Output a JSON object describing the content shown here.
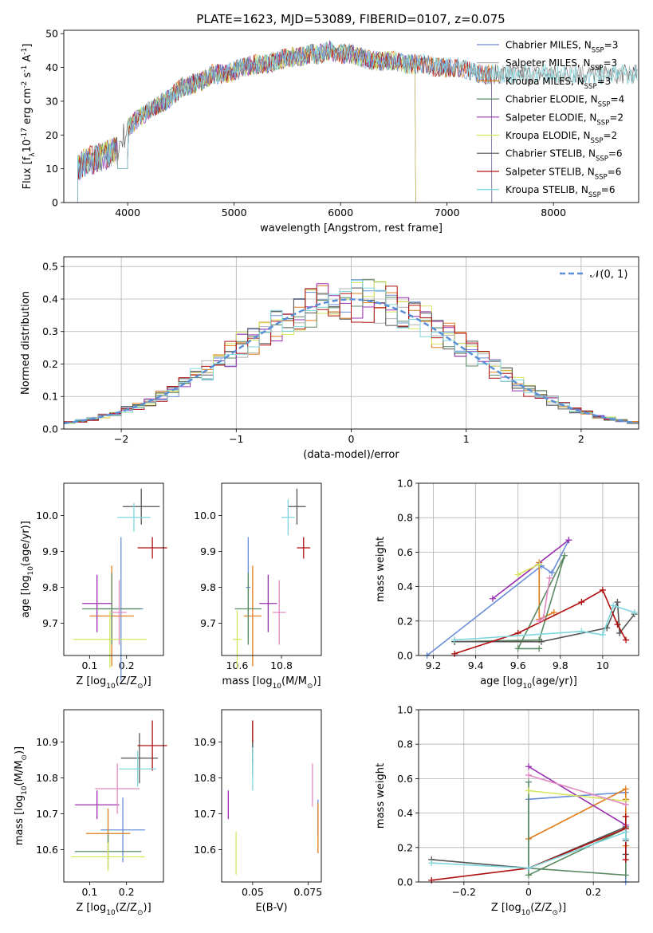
{
  "figure_title": "PLATE=1623, MJD=53089, FIBERID=0107, z=0.075",
  "colors": {
    "Chabrier MILES": "#6a8fd8",
    "Salpeter MILES": "#b0b0b0",
    "Kroupa MILES": "#e07b1a",
    "Chabrier ELODIE": "#5a8a62",
    "Salpeter ELODIE": "#9b30b0",
    "Kroupa ELODIE": "#d6e65c",
    "Chabrier STELIB": "#555555",
    "Salpeter STELIB": "#b01010",
    "Kroupa STELIB": "#7fd6dc",
    "pink": "#e08ac0",
    "normal": "#5b8fd8"
  },
  "chart_data": [
    {
      "type": "line",
      "title": "",
      "xlabel": "wavelength [Angstrom, rest frame]",
      "ylabel": "Flux [f$_\\lambda$10$^{-17}$ erg cm$^{-2}$ s$^{-1}$ A$^{-1}$]",
      "xlim": [
        3400,
        8800
      ],
      "ylim": [
        0,
        51
      ],
      "xticks": [
        4000,
        5000,
        6000,
        7000,
        8000
      ],
      "yticks": [
        0,
        10,
        20,
        30,
        40,
        50
      ],
      "legend_position": "right",
      "legend": [
        {
          "label": "Chabrier MILES, N",
          "sub": "SSP",
          "tail": "=3",
          "color": "#6a8fd8"
        },
        {
          "label": "Salpeter MILES, N",
          "sub": "SSP",
          "tail": "=3",
          "color": "#b0b0b0"
        },
        {
          "label": "Kroupa MILES, N",
          "sub": "SSP",
          "tail": "=3",
          "color": "#e07b1a"
        },
        {
          "label": "Chabrier ELODIE, N",
          "sub": "SSP",
          "tail": "=4",
          "color": "#5a8a62"
        },
        {
          "label": "Salpeter ELODIE, N",
          "sub": "SSP",
          "tail": "=2",
          "color": "#9b30b0"
        },
        {
          "label": "Kroupa ELODIE, N",
          "sub": "SSP",
          "tail": "=2",
          "color": "#d6e65c"
        },
        {
          "label": "Chabrier STELIB, N",
          "sub": "SSP",
          "tail": "=6",
          "color": "#555555"
        },
        {
          "label": "Salpeter STELIB, N",
          "sub": "SSP",
          "tail": "=6",
          "color": "#b01010"
        },
        {
          "label": "Kroupa STELIB, N",
          "sub": "SSP",
          "tail": "=6",
          "color": "#7fd6dc"
        }
      ],
      "continuum": {
        "x": [
          3530,
          3600,
          3700,
          3800,
          3900,
          4000,
          4100,
          4200,
          4300,
          4400,
          4500,
          4600,
          4700,
          4800,
          4900,
          5000,
          5100,
          5200,
          5300,
          5400,
          5500,
          5600,
          5700,
          5800,
          5900,
          6000,
          6100,
          6200,
          6300,
          6400,
          6500,
          6600,
          6700,
          6800,
          6900,
          7000,
          7100,
          7200,
          7300,
          7400,
          7500,
          7600,
          7700,
          7800,
          7900,
          8000,
          8100,
          8200,
          8300,
          8400,
          8500,
          8600,
          8700,
          8800
        ],
        "y": [
          10,
          12,
          13,
          14,
          16,
          22,
          25,
          27,
          29,
          31,
          34,
          35,
          36,
          38,
          38,
          39,
          40,
          41,
          41,
          42,
          43,
          43,
          44,
          44,
          45,
          44,
          44,
          43,
          42,
          42,
          42,
          41,
          41,
          41,
          40,
          40,
          40,
          39,
          38,
          38,
          38,
          38,
          38,
          38,
          38,
          38,
          38,
          38,
          38,
          38,
          38,
          38,
          38,
          38
        ]
      }
    },
    {
      "type": "line",
      "xlabel": "(data-model)/error",
      "ylabel": "Normed distribution",
      "xlim": [
        -2.5,
        2.5
      ],
      "ylim": [
        0,
        0.53
      ],
      "xticks": [
        -2,
        -1,
        0,
        1,
        2
      ],
      "yticks": [
        0.0,
        0.1,
        0.2,
        0.3,
        0.4,
        0.5
      ],
      "grid": true,
      "legend_position": "top-right",
      "legend_label": "𝒩(0, 1)"
    },
    {
      "type": "scatter",
      "xlabel": "Z [log$_{10}$(Z/Z$_\\odot$)]",
      "ylabel": "age  [log$_{10}$(age/yr)]",
      "xlim": [
        0.03,
        0.3
      ],
      "ylim": [
        9.61,
        10.09
      ],
      "xticks": [
        0.1,
        0.2
      ],
      "yticks": [
        9.7,
        9.8,
        9.9,
        10.0
      ],
      "points": [
        {
          "c": "#6a8fd8",
          "x": 0.185,
          "y": 9.74,
          "xe": 0.06,
          "ye": 0.2
        },
        {
          "c": "#e07b1a",
          "x": 0.16,
          "y": 9.72,
          "xe": 0.06,
          "ye": 0.14
        },
        {
          "c": "#5a8a62",
          "x": 0.16,
          "y": 9.74,
          "xe": 0.08,
          "ye": 0.1
        },
        {
          "c": "#9b30b0",
          "x": 0.12,
          "y": 9.755,
          "xe": 0.04,
          "ye": 0.08
        },
        {
          "c": "#d6e65c",
          "x": 0.155,
          "y": 9.655,
          "xe": 0.1,
          "ye": 0.08
        },
        {
          "c": "#555555",
          "x": 0.24,
          "y": 10.025,
          "xe": 0.05,
          "ye": 0.05
        },
        {
          "c": "#b01010",
          "x": 0.27,
          "y": 9.91,
          "xe": 0.04,
          "ye": 0.03
        },
        {
          "c": "#7fd6dc",
          "x": 0.22,
          "y": 9.995,
          "xe": 0.045,
          "ye": 0.04
        },
        {
          "c": "#e08ac0",
          "x": 0.18,
          "y": 9.73,
          "xe": 0.02,
          "ye": 0.09
        }
      ]
    },
    {
      "type": "scatter",
      "xlabel": "mass [log$_{10}$(M/M$_\\odot$)]",
      "ylabel": "",
      "xlim": [
        10.53,
        10.98
      ],
      "ylim": [
        9.61,
        10.09
      ],
      "xticks": [
        10.6,
        10.8
      ],
      "yticks": [
        9.7,
        9.8,
        9.9,
        10.0
      ],
      "points": [
        {
          "c": "#6a8fd8",
          "x": 10.65,
          "y": 9.8,
          "xe": 0.01,
          "ye": 0.14
        },
        {
          "c": "#e07b1a",
          "x": 10.67,
          "y": 9.72,
          "xe": 0.04,
          "ye": 0.14
        },
        {
          "c": "#5a8a62",
          "x": 10.65,
          "y": 9.74,
          "xe": 0.06,
          "ye": 0.1
        },
        {
          "c": "#9b30b0",
          "x": 10.74,
          "y": 9.755,
          "xe": 0.04,
          "ye": 0.08
        },
        {
          "c": "#d6e65c",
          "x": 10.6,
          "y": 9.655,
          "xe": 0.02,
          "ye": 0.08
        },
        {
          "c": "#555555",
          "x": 10.87,
          "y": 10.025,
          "xe": 0.04,
          "ye": 0.05
        },
        {
          "c": "#b01010",
          "x": 10.9,
          "y": 9.91,
          "xe": 0.03,
          "ye": 0.03
        },
        {
          "c": "#7fd6dc",
          "x": 10.83,
          "y": 9.995,
          "xe": 0.03,
          "ye": 0.05
        },
        {
          "c": "#e08ac0",
          "x": 10.79,
          "y": 9.73,
          "xe": 0.03,
          "ye": 0.09
        }
      ]
    },
    {
      "type": "line",
      "xlabel": "age  [log$_{10}$(age/yr)]",
      "ylabel": "mass weight",
      "xlim": [
        9.13,
        10.17
      ],
      "ylim": [
        0.0,
        1.0
      ],
      "xticks": [
        9.2,
        9.4,
        9.6,
        9.8,
        10.0
      ],
      "yticks": [
        0.0,
        0.2,
        0.4,
        0.6,
        0.8,
        1.0
      ],
      "grid": true,
      "series": [
        {
          "c": "#6a8fd8",
          "x": [
            9.17,
            9.71,
            9.76,
            9.84
          ],
          "y": [
            0.0,
            0.52,
            0.48,
            0.67
          ]
        },
        {
          "c": "#e07b1a",
          "x": [
            9.7,
            9.7,
            9.77
          ],
          "y": [
            0.54,
            0.21,
            0.25
          ]
        },
        {
          "c": "#5a8a62",
          "x": [
            9.3,
            9.7,
            9.82,
            9.6,
            9.7
          ],
          "y": [
            0.08,
            0.09,
            0.58,
            0.04,
            0.04
          ]
        },
        {
          "c": "#9b30b0",
          "x": [
            9.48,
            9.84
          ],
          "y": [
            0.33,
            0.67
          ]
        },
        {
          "c": "#d6e65c",
          "x": [
            9.6,
            9.7
          ],
          "y": [
            0.47,
            0.53
          ]
        },
        {
          "c": "#555555",
          "x": [
            9.3,
            9.71,
            10.02,
            10.07,
            10.08,
            10.15
          ],
          "y": [
            0.08,
            0.08,
            0.16,
            0.31,
            0.13,
            0.24
          ]
        },
        {
          "c": "#b01010",
          "x": [
            9.3,
            9.6,
            9.9,
            10.0,
            10.07,
            10.11
          ],
          "y": [
            0.01,
            0.13,
            0.31,
            0.38,
            0.18,
            0.09
          ]
        },
        {
          "c": "#7fd6dc",
          "x": [
            9.3,
            9.9,
            10.0,
            10.05,
            10.15
          ],
          "y": [
            0.09,
            0.14,
            0.12,
            0.29,
            0.25
          ]
        },
        {
          "c": "#e08ac0",
          "x": [
            9.7,
            9.72,
            9.75
          ],
          "y": [
            0.2,
            0.22,
            0.45
          ]
        }
      ]
    },
    {
      "type": "scatter",
      "xlabel": "Z [log$_{10}$(Z/Z$_\\odot$)]",
      "ylabel": "mass [log$_{10}$(M/M$_\\odot$)]",
      "xlim": [
        0.03,
        0.3
      ],
      "ylim": [
        10.51,
        10.99
      ],
      "xticks": [
        0.1,
        0.2
      ],
      "yticks": [
        10.6,
        10.7,
        10.8,
        10.9
      ],
      "points": [
        {
          "c": "#6a8fd8",
          "x": 0.19,
          "y": 10.655,
          "xe": 0.06,
          "ye": 0.09
        },
        {
          "c": "#e07b1a",
          "x": 0.15,
          "y": 10.645,
          "xe": 0.06,
          "ye": 0.07
        },
        {
          "c": "#5a8a62",
          "x": 0.15,
          "y": 10.595,
          "xe": 0.09,
          "ye": 0.05
        },
        {
          "c": "#9b30b0",
          "x": 0.12,
          "y": 10.725,
          "xe": 0.06,
          "ye": 0.04
        },
        {
          "c": "#d6e65c",
          "x": 0.15,
          "y": 10.58,
          "xe": 0.1,
          "ye": 0.04
        },
        {
          "c": "#555555",
          "x": 0.235,
          "y": 10.855,
          "xe": 0.05,
          "ye": 0.07
        },
        {
          "c": "#b01010",
          "x": 0.27,
          "y": 10.89,
          "xe": 0.04,
          "ye": 0.07
        },
        {
          "c": "#7fd6dc",
          "x": 0.23,
          "y": 10.825,
          "xe": 0.05,
          "ye": 0.05
        },
        {
          "c": "#e08ac0",
          "x": 0.175,
          "y": 10.77,
          "xe": 0.06,
          "ye": 0.07
        }
      ]
    },
    {
      "type": "scatter",
      "xlabel": "E(B-V)",
      "ylabel": "",
      "xlim": [
        0.036,
        0.081
      ],
      "ylim": [
        10.51,
        10.99
      ],
      "xticks": [
        0.05,
        0.075
      ],
      "yticks": [
        10.6,
        10.7,
        10.8,
        10.9
      ],
      "points": [
        {
          "c": "#6a8fd8",
          "x": 0.0795,
          "y": 10.69,
          "xe": 0,
          "ye": 0.05
        },
        {
          "c": "#e07b1a",
          "x": 0.0795,
          "y": 10.66,
          "xe": 0,
          "ye": 0.07
        },
        {
          "c": "#5a8a62",
          "x": 0.05,
          "y": 10.855,
          "xe": 0,
          "ye": 0.05
        },
        {
          "c": "#9b30b0",
          "x": 0.039,
          "y": 10.725,
          "xe": 0,
          "ye": 0.04
        },
        {
          "c": "#d6e65c",
          "x": 0.0425,
          "y": 10.59,
          "xe": 0,
          "ye": 0.06
        },
        {
          "c": "#555555",
          "x": 0.05,
          "y": 10.9,
          "xe": 0,
          "ye": 0.06
        },
        {
          "c": "#b01010",
          "x": 0.05,
          "y": 10.93,
          "xe": 0,
          "ye": 0.03
        },
        {
          "c": "#7fd6dc",
          "x": 0.05,
          "y": 10.825,
          "xe": 0,
          "ye": 0.06
        },
        {
          "c": "#e08ac0",
          "x": 0.077,
          "y": 10.78,
          "xe": 0,
          "ye": 0.06
        }
      ]
    },
    {
      "type": "line",
      "xlabel": "Z [log$_{10}$(Z/Z$_\\odot$)]",
      "ylabel": "mass weight",
      "xlim": [
        -0.34,
        0.34
      ],
      "ylim": [
        0.0,
        1.0
      ],
      "xticks": [
        -0.2,
        0.0,
        0.2
      ],
      "yticks": [
        0.0,
        0.2,
        0.4,
        0.6,
        0.8,
        1.0
      ],
      "grid": true,
      "series": [
        {
          "c": "#6a8fd8",
          "x": [
            0.0,
            0.0,
            0.3,
            0.3
          ],
          "y": [
            0.08,
            0.48,
            0.52,
            0.0
          ]
        },
        {
          "c": "#e07b1a",
          "x": [
            0.0,
            0.3,
            0.3,
            0.3
          ],
          "y": [
            0.25,
            0.54,
            0.48,
            0.21
          ]
        },
        {
          "c": "#5a8a62",
          "x": [
            0.0,
            0.0,
            0.3,
            0.3,
            0.0
          ],
          "y": [
            0.58,
            0.04,
            0.31,
            0.04,
            0.08
          ]
        },
        {
          "c": "#9b30b0",
          "x": [
            0.0,
            0.3
          ],
          "y": [
            0.67,
            0.33
          ]
        },
        {
          "c": "#d6e65c",
          "x": [
            0.0,
            0.3
          ],
          "y": [
            0.53,
            0.47
          ]
        },
        {
          "c": "#555555",
          "x": [
            -0.3,
            0.0,
            0.3,
            0.3,
            0.3
          ],
          "y": [
            0.13,
            0.08,
            0.32,
            0.24,
            0.16
          ]
        },
        {
          "c": "#b01010",
          "x": [
            -0.3,
            0.0,
            0.3,
            0.3,
            0.3
          ],
          "y": [
            0.01,
            0.08,
            0.31,
            0.38,
            0.13
          ]
        },
        {
          "c": "#7fd6dc",
          "x": [
            -0.3,
            0.0,
            0.3,
            0.3
          ],
          "y": [
            0.11,
            0.08,
            0.29,
            0.25
          ]
        },
        {
          "c": "#e08ac0",
          "x": [
            0.0,
            0.3
          ],
          "y": [
            0.62,
            0.45
          ]
        }
      ]
    }
  ]
}
